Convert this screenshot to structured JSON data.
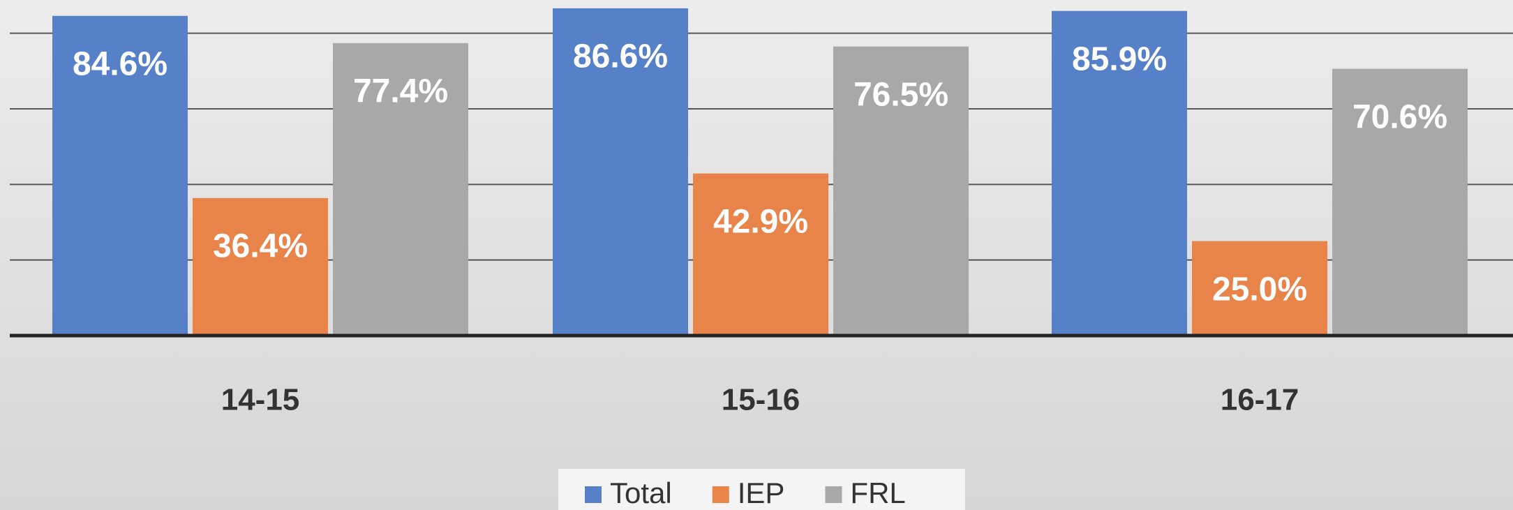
{
  "chart_data": {
    "type": "bar",
    "categories": [
      "14-15",
      "15-16",
      "16-17"
    ],
    "series": [
      {
        "name": "Total",
        "color": "#5680c8",
        "values": [
          84.6,
          86.6,
          85.9
        ],
        "value_labels": [
          "84.6%",
          "86.6%",
          "85.9%"
        ]
      },
      {
        "name": "IEP",
        "color": "#e8834a",
        "values": [
          36.4,
          42.9,
          25.0
        ],
        "value_labels": [
          "36.4%",
          "42.9%",
          "25.0%"
        ]
      },
      {
        "name": "FRL",
        "color": "#a8a8a8",
        "values": [
          77.4,
          76.5,
          70.6
        ],
        "value_labels": [
          "77.4%",
          "76.5%",
          "70.6%"
        ]
      }
    ],
    "ylim": [
      0,
      88.8
    ],
    "yticks": [
      0,
      20,
      40,
      60,
      80
    ],
    "grid": true,
    "legend": "bottom"
  }
}
